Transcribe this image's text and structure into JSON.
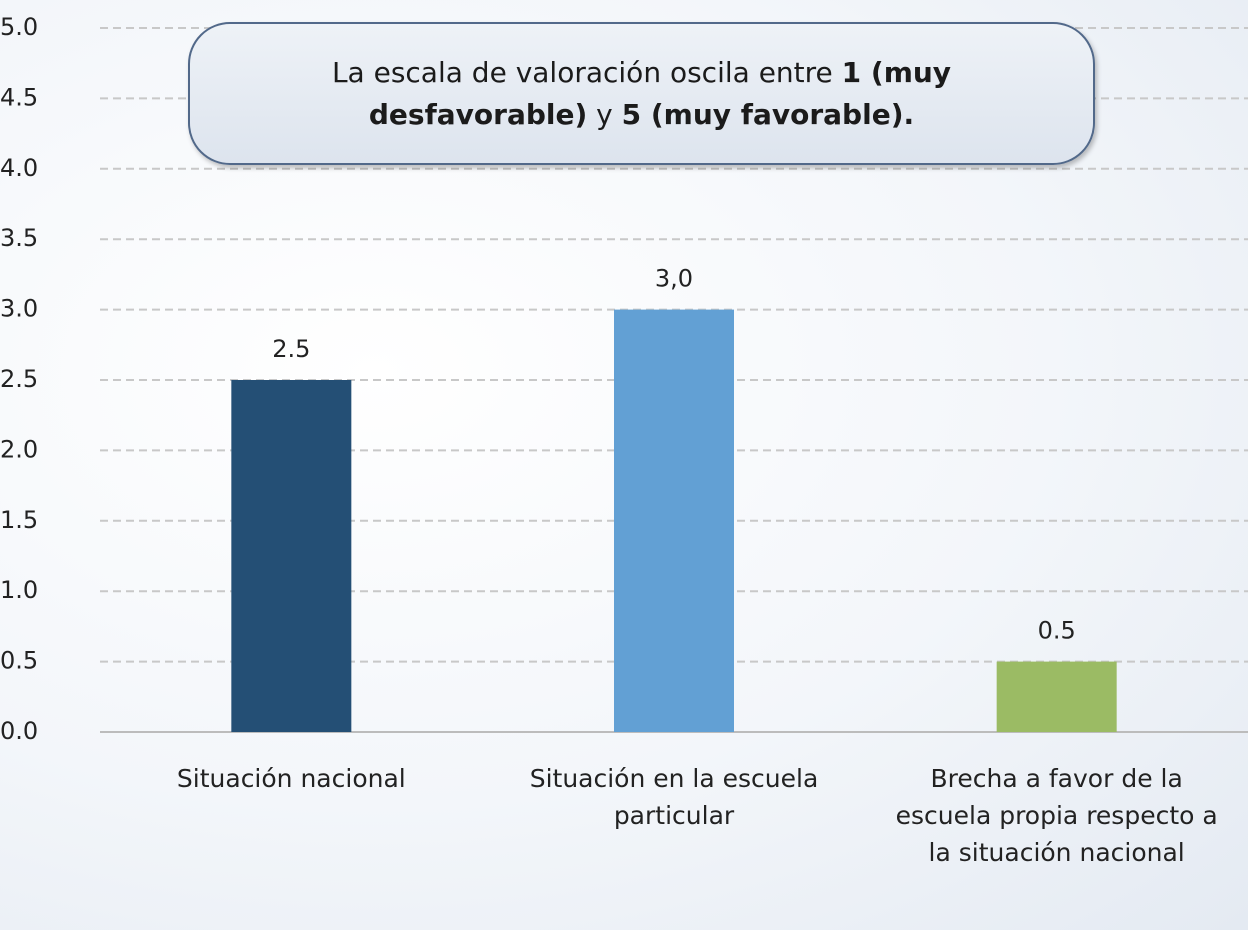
{
  "chart_data": {
    "type": "bar",
    "categories": [
      "Situación nacional",
      "Situación en la escuela particular",
      "Brecha a favor de la escuela propia respecto a la situación nacional"
    ],
    "values": [
      2.5,
      3.0,
      0.5
    ],
    "value_labels": [
      "2.5",
      "3,0",
      "0.5"
    ],
    "colors": [
      "#244f75",
      "#62a0d4",
      "#9bbb64"
    ],
    "ylim": [
      0,
      5
    ],
    "yticks": [
      {
        "value": 0,
        "label": "0.0"
      },
      0.5,
      {
        "value": 1,
        "label": "1.0"
      },
      1.5,
      {
        "value": 2,
        "label": "2.0"
      },
      2.5,
      {
        "value": 3,
        "label": "3.0"
      },
      3.5,
      {
        "value": 4,
        "label": "4.0"
      },
      4.5,
      {
        "value": 5,
        "label": "5.0"
      }
    ],
    "grid": true,
    "annotation": [
      {
        "text": "La escala de valoración oscila entre ",
        "bold": false
      },
      {
        "text": "1 (muy desfavorable)",
        "bold": true
      },
      {
        "text": " y ",
        "bold": false
      },
      {
        "text": "5 (muy favorable).",
        "bold": true
      }
    ]
  }
}
